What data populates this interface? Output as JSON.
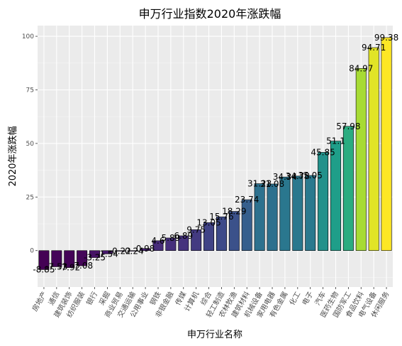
{
  "chart_data": {
    "type": "bar",
    "title": "申万行业指数2020年涨跌幅",
    "xlabel": "申万行业名称",
    "ylabel": "2020年涨跌幅",
    "ylim": [
      -17,
      105
    ],
    "yticks": [
      0,
      25,
      50,
      75,
      100
    ],
    "grid": true,
    "legend": "none",
    "categories": [
      "房地产",
      "通信",
      "建筑装饰",
      "纺织服装",
      "银行",
      "采掘",
      "商业贸易",
      "交通运输",
      "公用事业",
      "钢铁",
      "非银金融",
      "传媒",
      "计算机",
      "综合",
      "轻工制造",
      "农林牧渔",
      "建筑材料",
      "机械设备",
      "家用电器",
      "有色金属",
      "化工",
      "电子",
      "汽车",
      "医药生物",
      "国防军工",
      "食品饮料",
      "电气设备",
      "休闲服务"
    ],
    "values": [
      -8.85,
      -7.53,
      -7.92,
      -7.08,
      -3.25,
      -1.54,
      -0.22,
      -0.24,
      0.98,
      4.6,
      5.89,
      6.89,
      9.75,
      13.05,
      15.76,
      18.29,
      23.74,
      31.23,
      31.08,
      34.34,
      34.78,
      35.05,
      45.85,
      51.1,
      57.98,
      84.97,
      94.71,
      99.38
    ],
    "data_labels": [
      "-8.85",
      "-7.53",
      "-7.92",
      "-7.08",
      "-3.25",
      "-1.54",
      "-0.22",
      "-0.24",
      "0.98",
      "4.6",
      "5.89",
      "6.89",
      "9.75",
      "13.05",
      "15.76",
      "18.29",
      "23.74",
      "31.23",
      "31.08",
      "34.34",
      "34.78",
      "35.05",
      "45.85",
      "51.1",
      "57.98",
      "84.97",
      "94.71",
      "99.38"
    ],
    "colormap": [
      "#440154",
      "#482878",
      "#3e4989",
      "#31688e",
      "#26828e",
      "#1f9e89",
      "#35b779",
      "#6ece58",
      "#b5de2b",
      "#fde725"
    ],
    "panel_background": "#ebebeb",
    "bar_edge_color": "#000000"
  }
}
